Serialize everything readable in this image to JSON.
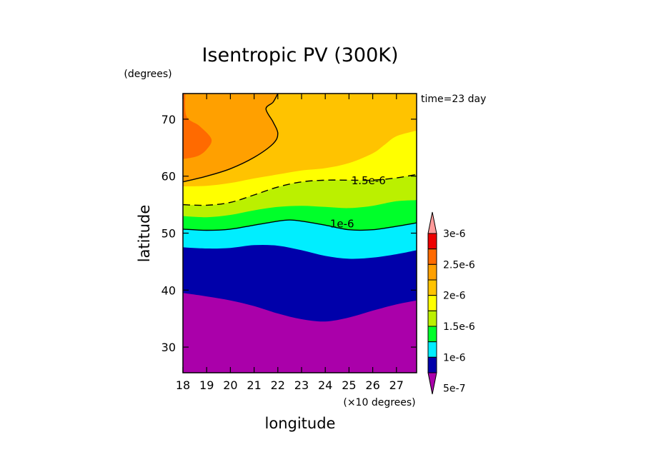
{
  "chart_data": {
    "type": "contour",
    "title": "Isentropic PV (300K)",
    "xlabel": "longitude",
    "ylabel": "latitude",
    "x_units": "(×10 degrees)",
    "y_units": "(degrees)",
    "time_label": "time=23 day",
    "xlim": [
      18,
      27.85
    ],
    "ylim": [
      25.5,
      74.5
    ],
    "x_ticks": [
      "18",
      "19",
      "20",
      "21",
      "22",
      "23",
      "24",
      "25",
      "26",
      "27"
    ],
    "y_ticks": [
      "30",
      "40",
      "50",
      "60",
      "70"
    ],
    "levels": [
      5e-07,
      1e-06,
      1.5e-06,
      2e-06,
      2.5e-06,
      3e-06
    ],
    "fill_colors": [
      "#aa00aa",
      "#0000aa",
      "#00eeff",
      "#00ff2a",
      "#bbf000",
      "#ffff00",
      "#ffc300",
      "#ffa000",
      "#ff6a00",
      "#ee0000",
      "#ff9a9a"
    ],
    "colorbar": {
      "labels": [
        "3e-6",
        "2.5e-6",
        "2e-6",
        "1.5e-6",
        "1e-6",
        "5e-7"
      ],
      "colors_top_to_bottom": [
        "#ff9a9a",
        "#ee0000",
        "#ff6a00",
        "#ffa000",
        "#ffc300",
        "#ffff00",
        "#bbf000",
        "#00ff2a",
        "#00eeff",
        "#0000aa",
        "#aa00aa"
      ]
    },
    "contour_labels": [
      {
        "text": "1.5e-6",
        "x": 25.1,
        "y": 59.2
      },
      {
        "text": "1e-6",
        "x": 24.2,
        "y": 51.6
      }
    ],
    "boundaries": [
      {
        "level": 5e-07,
        "points": [
          [
            18,
            39.5
          ],
          [
            19,
            38.9
          ],
          [
            20,
            38.2
          ],
          [
            21,
            37.2
          ],
          [
            22,
            35.9
          ],
          [
            23,
            34.9
          ],
          [
            24,
            34.5
          ],
          [
            25,
            35.2
          ],
          [
            26,
            36.4
          ],
          [
            27,
            37.5
          ],
          [
            27.85,
            38.2
          ]
        ]
      },
      {
        "level": 7.5e-07,
        "points": [
          [
            18,
            47.5
          ],
          [
            19,
            47.3
          ],
          [
            20,
            47.4
          ],
          [
            21,
            47.9
          ],
          [
            22,
            47.8
          ],
          [
            23,
            47.0
          ],
          [
            24,
            46.0
          ],
          [
            25,
            45.5
          ],
          [
            26,
            45.7
          ],
          [
            27,
            46.3
          ],
          [
            27.85,
            47.0
          ]
        ]
      },
      {
        "level": 1e-06,
        "points": [
          [
            18,
            50.7
          ],
          [
            19,
            50.5
          ],
          [
            20,
            50.7
          ],
          [
            21,
            51.4
          ],
          [
            22,
            52.1
          ],
          [
            22.5,
            52.3
          ],
          [
            23,
            52.1
          ],
          [
            24,
            51.4
          ],
          [
            25,
            50.6
          ],
          [
            26,
            50.6
          ],
          [
            27,
            51.2
          ],
          [
            27.85,
            51.8
          ]
        ]
      },
      {
        "level": 1.25e-06,
        "points": [
          [
            18,
            53.0
          ],
          [
            19,
            52.8
          ],
          [
            20,
            53.2
          ],
          [
            21,
            54.0
          ],
          [
            22,
            54.6
          ],
          [
            23,
            54.8
          ],
          [
            24,
            54.6
          ],
          [
            25,
            54.4
          ],
          [
            26,
            54.8
          ],
          [
            27,
            55.6
          ],
          [
            27.85,
            55.8
          ]
        ]
      },
      {
        "level": 1.5e-06,
        "points": [
          [
            18,
            55.0
          ],
          [
            19,
            54.9
          ],
          [
            20,
            55.4
          ],
          [
            21,
            56.7
          ],
          [
            22,
            58.1
          ],
          [
            23,
            59.0
          ],
          [
            24,
            59.3
          ],
          [
            25,
            59.3
          ],
          [
            26,
            59.3
          ],
          [
            27,
            59.7
          ],
          [
            27.85,
            60.3
          ]
        ]
      },
      {
        "level": 1.75e-06,
        "points": [
          [
            18,
            58.2
          ],
          [
            19,
            58.3
          ],
          [
            20,
            58.8
          ],
          [
            21,
            59.6
          ],
          [
            22,
            60.3
          ],
          [
            23,
            61.0
          ],
          [
            24,
            61.4
          ],
          [
            25,
            62.3
          ],
          [
            26,
            64.0
          ],
          [
            26.5,
            65.5
          ],
          [
            27,
            67.0
          ],
          [
            27.85,
            68.0
          ]
        ]
      },
      {
        "level": 2e-06,
        "closed_to_top_left": true,
        "points": [
          [
            18,
            59.0
          ],
          [
            19,
            60.0
          ],
          [
            20,
            61.3
          ],
          [
            21,
            63.3
          ],
          [
            21.8,
            65.7
          ],
          [
            22,
            67.5
          ],
          [
            21.8,
            69.5
          ],
          [
            21.5,
            71.8
          ],
          [
            21.8,
            73.0
          ],
          [
            22,
            74.5
          ]
        ]
      },
      {
        "level": 2.25e-06,
        "closed_to_top_left": true,
        "points": [
          [
            18,
            63.0
          ],
          [
            18.6,
            63.5
          ],
          [
            19,
            64.7
          ],
          [
            19.2,
            66.5
          ],
          [
            18.7,
            68.8
          ],
          [
            18.15,
            70.5
          ],
          [
            18.1,
            74.5
          ]
        ]
      }
    ]
  }
}
